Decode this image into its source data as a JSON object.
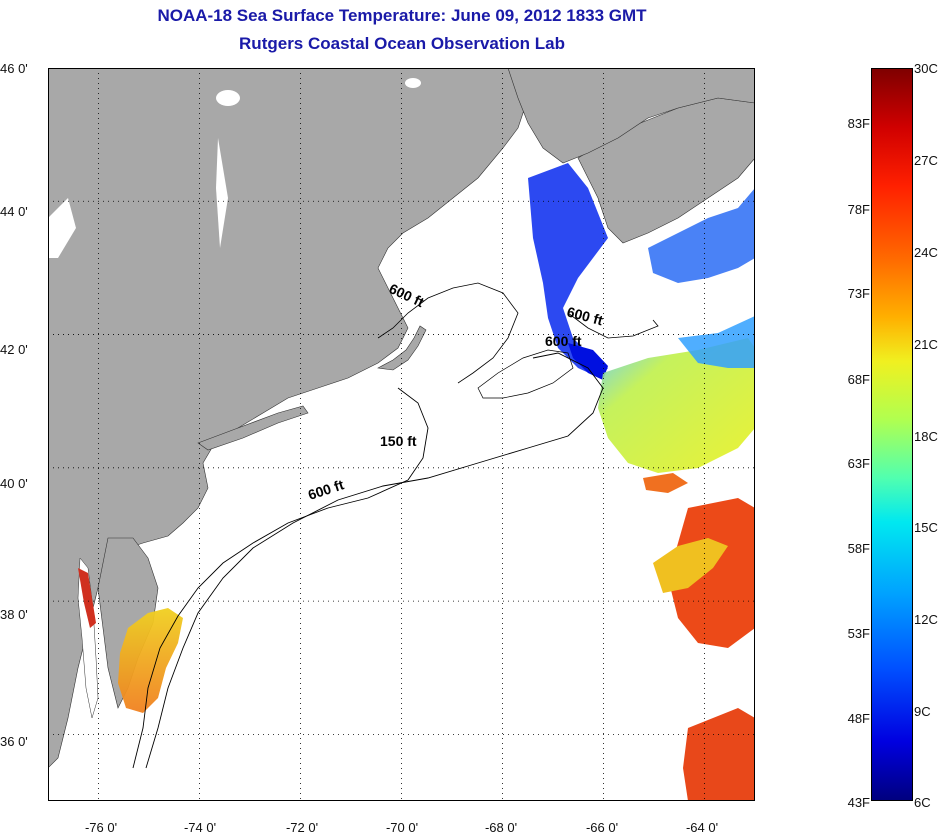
{
  "header": {
    "title_line1": "NOAA-18 Sea Surface Temperature:  June 09, 2012 1833 GMT",
    "title_line2": "Rutgers Coastal Ocean Observation Lab"
  },
  "axes": {
    "lat_ticks": [
      "46 0'",
      "44 0'",
      "42 0'",
      "40 0'",
      "38 0'",
      "36 0'"
    ],
    "lat_values": [
      46,
      44,
      42,
      40,
      38,
      36
    ],
    "lon_ticks": [
      "-76 0'",
      "-74 0'",
      "-72 0'",
      "-70 0'",
      "-68 0'",
      "-66 0'",
      "-64 0'"
    ],
    "lon_values": [
      -76,
      -74,
      -72,
      -70,
      -68,
      -66,
      -64
    ],
    "lat_range": [
      35,
      46
    ],
    "lon_range": [
      -77,
      -63
    ],
    "grid": "dotted"
  },
  "contours": {
    "labels": [
      "600 ft",
      "600 ft",
      "600 ft",
      "150 ft",
      "600 ft"
    ]
  },
  "colorbar": {
    "fahrenheit_labels": [
      "83F",
      "78F",
      "73F",
      "68F",
      "63F",
      "58F",
      "53F",
      "48F",
      "43F"
    ],
    "celsius_labels": [
      "30C",
      "27C",
      "24C",
      "21C",
      "18C",
      "15C",
      "12C",
      "9C",
      "6C"
    ],
    "range_c": [
      6,
      30
    ]
  },
  "colors": {
    "land": "#a8a8a8",
    "ocean": "#ffffff",
    "title": "#1a1aa8"
  }
}
